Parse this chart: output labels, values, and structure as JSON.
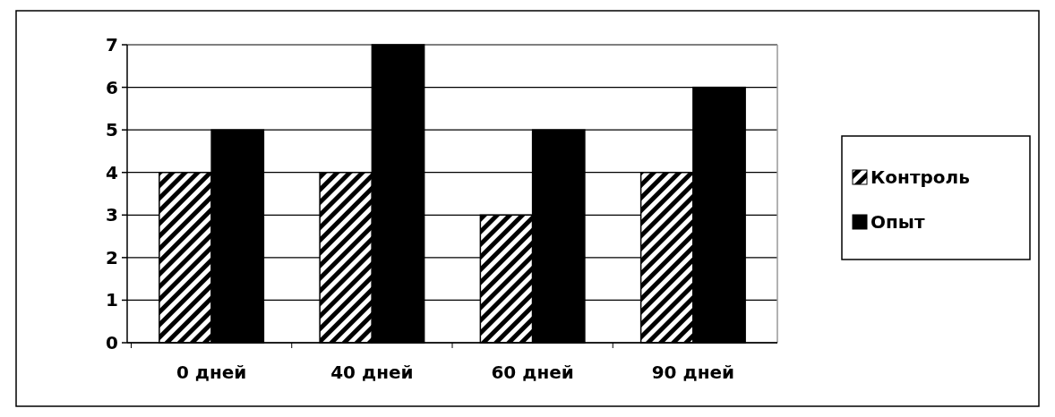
{
  "chart_data": {
    "type": "bar",
    "categories": [
      "0 дней",
      "40 дней",
      "60 дней",
      "90 дней"
    ],
    "series": [
      {
        "name": "Контроль",
        "color": "#000000",
        "values": [
          4,
          4,
          3,
          4
        ]
      },
      {
        "name": "Опыт",
        "color": "#000000",
        "values": [
          5,
          7,
          5,
          6
        ]
      }
    ],
    "ylim": [
      0,
      7
    ],
    "yticks": [
      0,
      1,
      2,
      3,
      4,
      5,
      6,
      7
    ],
    "grid": "y",
    "legend": "right"
  }
}
